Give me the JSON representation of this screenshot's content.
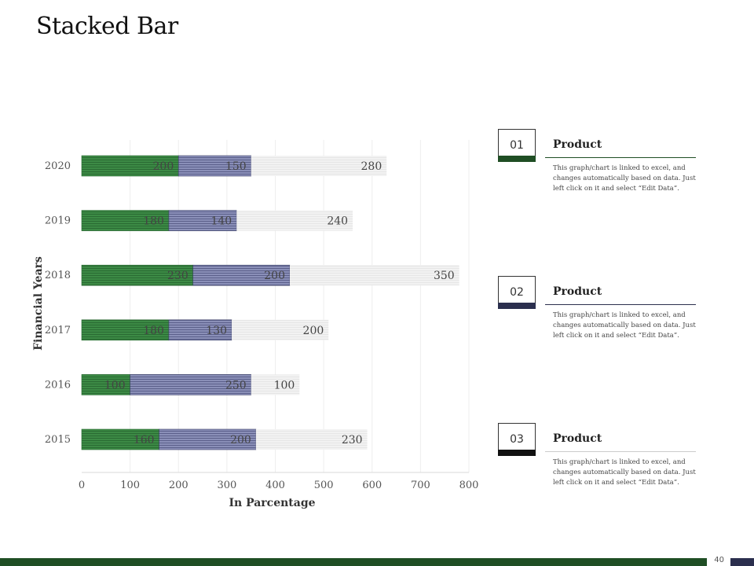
{
  "slide": {
    "title": "Stacked Bar",
    "page_number": "40"
  },
  "colors": {
    "series1": "#3c8a45",
    "series2": "#8a8fb8",
    "series3": "#eeeeee",
    "accent_green": "#1f4e24",
    "accent_navy": "#2b2f4e",
    "accent_black": "#111111"
  },
  "chart_data": {
    "type": "bar",
    "orientation": "horizontal",
    "stacked": true,
    "categories": [
      "2015",
      "2016",
      "2017",
      "2018",
      "2019",
      "2020"
    ],
    "series": [
      {
        "values": [
          160,
          100,
          180,
          230,
          180,
          200
        ]
      },
      {
        "values": [
          200,
          250,
          130,
          200,
          140,
          150
        ]
      },
      {
        "values": [
          230,
          100,
          200,
          350,
          240,
          280
        ]
      }
    ],
    "xlabel": "In Parcentage",
    "ylabel": "Financial Years",
    "xlim": [
      0,
      800
    ],
    "xticks": [
      0,
      100,
      200,
      300,
      400,
      500,
      600,
      700,
      800
    ],
    "grid": true,
    "legend": "none"
  },
  "products": [
    {
      "number": "01",
      "title": "Product",
      "description": "This graph/chart is linked to excel, and changes automatically based on data. Just left click on it and select “Edit Data”.",
      "accent": "#1f4e24"
    },
    {
      "number": "02",
      "title": "Product",
      "description": "This graph/chart is linked to excel, and changes automatically based on data. Just left click on it and select “Edit Data”.",
      "accent": "#2b2f4e"
    },
    {
      "number": "03",
      "title": "Product",
      "description": "This graph/chart is linked to excel, and changes automatically based on data. Just left click on it and select “Edit Data”.",
      "accent": "#111111"
    }
  ]
}
